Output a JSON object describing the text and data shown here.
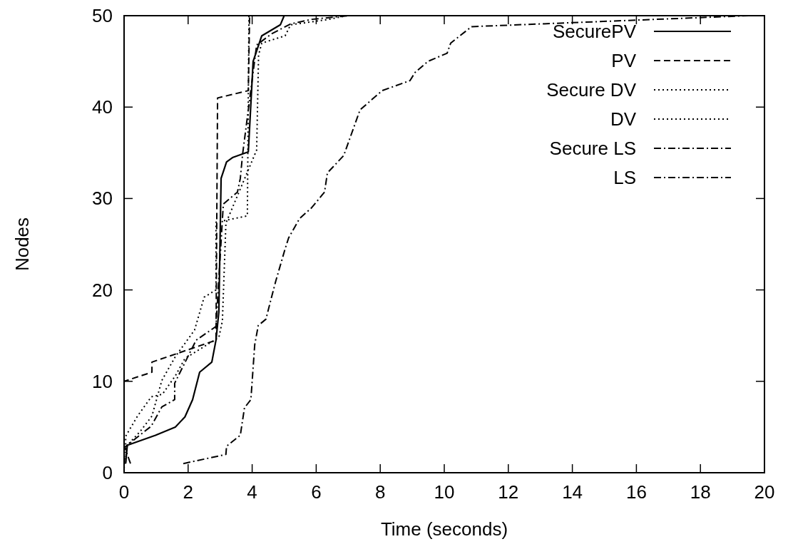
{
  "chart_data": {
    "type": "line",
    "xlabel": "Time (seconds)",
    "ylabel": "Nodes",
    "xlim": [
      0,
      20
    ],
    "ylim": [
      0,
      50
    ],
    "xticks": [
      0,
      2,
      4,
      6,
      8,
      10,
      12,
      14,
      16,
      18,
      20
    ],
    "yticks": [
      0,
      10,
      20,
      30,
      40,
      50
    ],
    "grid": false,
    "legend": "top right",
    "marker": "none",
    "series": [
      {
        "name": "SecurePV",
        "color": "#000000",
        "line_style": "solid",
        "x": [
          0.05,
          0.1,
          0.98,
          1.6,
          1.9,
          2.14,
          2.36,
          2.74,
          2.87,
          2.96,
          3.03,
          3.2,
          3.4,
          3.88,
          4.03,
          4.3,
          4.88,
          5.0
        ],
        "values": [
          1,
          3,
          4.1,
          5,
          6.1,
          8,
          11,
          12.1,
          14.5,
          17.6,
          32.2,
          34,
          34.5,
          35.1,
          45,
          47.8,
          49,
          50
        ]
      },
      {
        "name": "PV",
        "color": "#000000",
        "line_style": "dashed",
        "x": [
          0,
          0,
          0.87,
          0.87,
          2.87,
          2.92,
          3.88,
          3.92
        ],
        "values": [
          0,
          10,
          11,
          12.1,
          14.5,
          41,
          41.8,
          50
        ]
      },
      {
        "name": "Secure DV",
        "color": "#000000",
        "line_style": "dotted",
        "x": [
          0.05,
          0.05,
          0.42,
          0.85,
          1.2,
          1.6,
          1.9,
          2.96,
          3.07,
          3.18,
          4.14,
          4.2,
          4.3,
          5.03,
          5.2,
          6.4,
          6.95
        ],
        "values": [
          1.2,
          4,
          6.2,
          8.3,
          8.6,
          10.6,
          12.5,
          14.8,
          16.6,
          27.3,
          35.3,
          45.7,
          47,
          47.8,
          49,
          49.6,
          50
        ]
      },
      {
        "name": "DV",
        "color": "#000000",
        "line_style": "dotted",
        "x": [
          0,
          0.1,
          0.5,
          0.87,
          1.18,
          1.6,
          2.2,
          2.5,
          2.87,
          2.87,
          3.85,
          3.9
        ],
        "values": [
          0.5,
          3,
          4.5,
          6.2,
          10.1,
          12.7,
          15.6,
          19.2,
          20,
          27.4,
          28.1,
          50
        ]
      },
      {
        "name": "Secure LS",
        "color": "#000000",
        "line_style": "dashdot",
        "x": [
          0.2,
          0.02,
          0.85,
          1.18,
          1.58,
          1.58,
          2.25,
          2.87,
          3.1,
          3.54,
          3.63,
          3.7,
          4.14,
          4.6,
          5.2,
          5.86,
          7.0
        ],
        "values": [
          1,
          2.8,
          5.1,
          7.2,
          8,
          9.8,
          14.5,
          16,
          29.4,
          30.7,
          32.2,
          34.8,
          46.8,
          48,
          49.1,
          49.6,
          50
        ]
      },
      {
        "name": "LS",
        "color": "#000000",
        "line_style": "dashdot",
        "x": [
          1.85,
          3.18,
          3.2,
          3.63,
          3.76,
          3.96,
          4.08,
          4.19,
          4.43,
          4.59,
          4.74,
          5.03,
          5.14,
          5.48,
          5.86,
          6.26,
          6.35,
          6.86,
          7.37,
          8.06,
          8.93,
          9.09,
          9.49,
          10.09,
          10.2,
          10.85,
          19.5
        ],
        "values": [
          1,
          2,
          2.9,
          4.1,
          7.1,
          8,
          14,
          16.1,
          16.8,
          19,
          21,
          24.5,
          25.7,
          27.8,
          29,
          30.7,
          32.8,
          34.7,
          39.7,
          41.8,
          42.9,
          43.8,
          45,
          45.9,
          47,
          48.8,
          50
        ]
      }
    ]
  }
}
